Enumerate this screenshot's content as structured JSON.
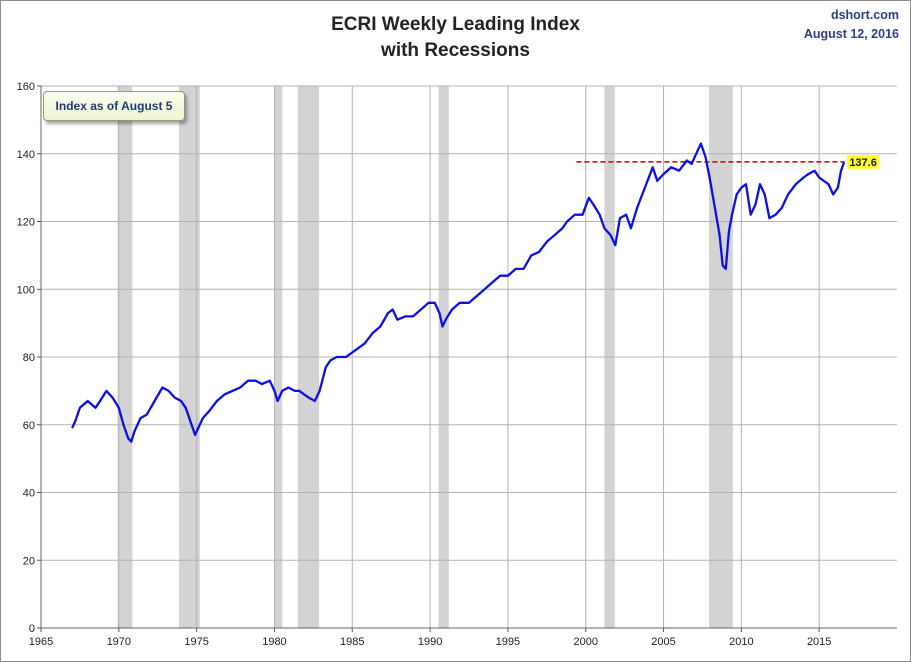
{
  "chart_data": {
    "type": "line",
    "title_line1": "ECRI Weekly Leading Index",
    "title_line2": "with Recessions",
    "source": "dshort.com",
    "date": "August 12, 2016",
    "annotation": "Index as of August 5",
    "last_value_label": "137.6",
    "reference_value": 137.6,
    "xlim": [
      1965,
      2020
    ],
    "ylim": [
      0,
      160
    ],
    "x_ticks": [
      1965,
      1970,
      1975,
      1980,
      1985,
      1990,
      1995,
      2000,
      2005,
      2010,
      2015
    ],
    "y_ticks": [
      0,
      20,
      40,
      60,
      80,
      100,
      120,
      140,
      160
    ],
    "grid": true,
    "colors": {
      "line": "#0a10e6",
      "recession": "#d3d3d3",
      "reference_line": "#c00000",
      "last_value_bg": "#ffff33",
      "grid": "#b3b3b3"
    },
    "recessions": [
      [
        1969.92,
        1970.87
      ],
      [
        1973.87,
        1975.2
      ],
      [
        1980.0,
        1980.5
      ],
      [
        1981.5,
        1982.87
      ],
      [
        1990.54,
        1991.2
      ],
      [
        2001.2,
        2001.87
      ],
      [
        2007.92,
        2009.45
      ]
    ],
    "series": [
      {
        "x": [
          1967.0,
          1967.2,
          1967.5,
          1968.0,
          1968.5,
          1968.8,
          1969.2,
          1969.6,
          1970.0,
          1970.3,
          1970.6,
          1970.8,
          1971.0,
          1971.4,
          1971.8,
          1972.3,
          1972.8,
          1973.2,
          1973.6,
          1974.0,
          1974.3,
          1974.6,
          1974.9,
          1975.1,
          1975.4,
          1975.8,
          1976.3,
          1976.8,
          1977.3,
          1977.8,
          1978.3,
          1978.8,
          1979.2,
          1979.7,
          1980.0,
          1980.2,
          1980.5,
          1980.9,
          1981.3,
          1981.6,
          1981.9,
          1982.2,
          1982.6,
          1982.9,
          1983.3,
          1983.6,
          1984.0,
          1984.6,
          1985.2,
          1985.8,
          1986.3,
          1986.8,
          1987.3,
          1987.6,
          1987.9,
          1988.4,
          1988.9,
          1989.4,
          1989.9,
          1990.3,
          1990.6,
          1990.8,
          1991.0,
          1991.4,
          1991.9,
          1992.5,
          1993.0,
          1993.5,
          1994.0,
          1994.5,
          1995.0,
          1995.5,
          1996.0,
          1996.5,
          1997.0,
          1997.5,
          1998.0,
          1998.5,
          1998.8,
          1999.3,
          1999.8,
          2000.2,
          2000.5,
          2000.9,
          2001.2,
          2001.6,
          2001.9,
          2002.2,
          2002.6,
          2002.9,
          2003.3,
          2003.8,
          2004.3,
          2004.6,
          2005.0,
          2005.5,
          2006.0,
          2006.5,
          2006.8,
          2007.1,
          2007.4,
          2007.7,
          2008.0,
          2008.3,
          2008.6,
          2008.8,
          2009.0,
          2009.2,
          2009.4,
          2009.7,
          2010.0,
          2010.3,
          2010.6,
          2010.9,
          2011.2,
          2011.5,
          2011.8,
          2012.2,
          2012.6,
          2013.0,
          2013.5,
          2014.0,
          2014.3,
          2014.7,
          2015.0,
          2015.3,
          2015.6,
          2015.9,
          2016.2,
          2016.4,
          2016.6
        ],
        "y": [
          59,
          61,
          65,
          67,
          65,
          67,
          70,
          68,
          65,
          60,
          56,
          55,
          58,
          62,
          63,
          67,
          71,
          70,
          68,
          67,
          65,
          61,
          57,
          59,
          62,
          64,
          67,
          69,
          70,
          71,
          73,
          73,
          72,
          73,
          70,
          67,
          70,
          71,
          70,
          70,
          69,
          68,
          67,
          70,
          77,
          79,
          80,
          80,
          82,
          84,
          87,
          89,
          93,
          94,
          91,
          92,
          92,
          94,
          96,
          96,
          93,
          89,
          91,
          94,
          96,
          96,
          98,
          100,
          102,
          104,
          104,
          106,
          106,
          110,
          111,
          114,
          116,
          118,
          120,
          122,
          122,
          127,
          125,
          122,
          118,
          116,
          113,
          121,
          122,
          118,
          124,
          130,
          136,
          132,
          134,
          136,
          135,
          138,
          137,
          140,
          143,
          139,
          132,
          124,
          116,
          107,
          106,
          117,
          122,
          128,
          130,
          131,
          122,
          125,
          131,
          128,
          121,
          122,
          124,
          128,
          131,
          133,
          134,
          135,
          133,
          132,
          131,
          128,
          130,
          135,
          137.6
        ]
      }
    ]
  }
}
